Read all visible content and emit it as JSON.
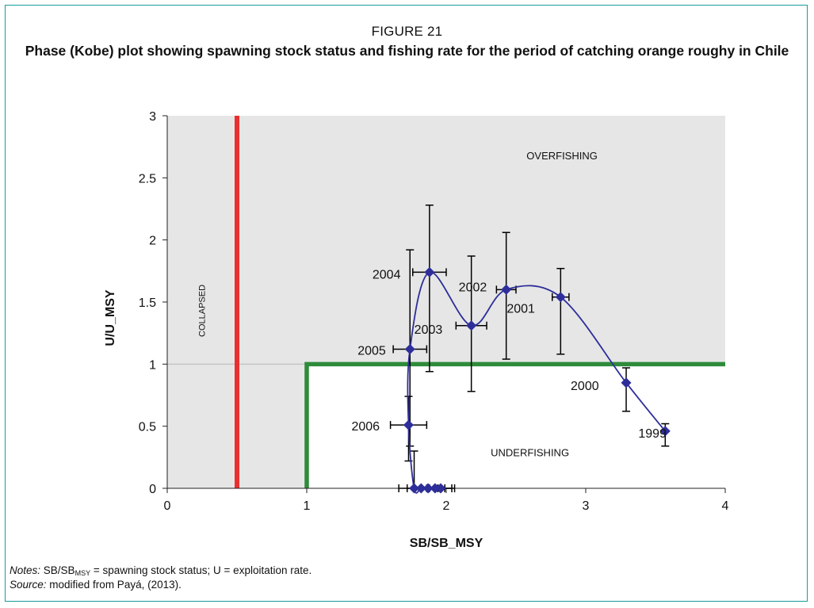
{
  "figure": {
    "label": "FIGURE 21",
    "title": "Phase (Kobe) plot showing spawning stock status and fishing rate for the period of catching orange roughy in Chile"
  },
  "notes": {
    "notes_label": "Notes:",
    "notes_sb": "SB/SB",
    "notes_sub": "MSY",
    "notes_rest": " = spawning stock status; U = exploitation rate.",
    "source_label": "Source:",
    "source_text": " modified from Payá, (2013)."
  },
  "colors": {
    "plot_background": "#e6e6e6",
    "collapse_line": "#e83030",
    "target_line": "#2e8b3a",
    "series_line": "#2e2e9a",
    "marker": "#2e2e9a",
    "error_bar": "#000000",
    "frame_border": "#1a9a9a"
  },
  "chart_data": {
    "type": "scatter",
    "title": "",
    "xlabel": "SB/SB_MSY",
    "ylabel": "U/U_MSY",
    "xlim": [
      0,
      4
    ],
    "ylim": [
      0,
      3
    ],
    "xticks": [
      "0",
      "1",
      "2",
      "3",
      "4"
    ],
    "yticks": [
      "0",
      "0.5",
      "1",
      "1.5",
      "2",
      "2.5",
      "3"
    ],
    "grid": false,
    "region_labels": {
      "overfishing": "OVERFISHING",
      "underfishing": "UNDERFISHING",
      "collapsed": "COLLAPSED"
    },
    "reference_lines": {
      "collapse_x": 0.5,
      "target": {
        "x": 1,
        "y": 1
      },
      "background_y": 1
    },
    "points": [
      {
        "label": "1999",
        "x": 3.57,
        "y": 0.46,
        "x_lo": 3.57,
        "x_hi": 3.57,
        "y_lo": 0.34,
        "y_hi": 0.52
      },
      {
        "label": "2000",
        "x": 3.29,
        "y": 0.85,
        "x_lo": 3.29,
        "x_hi": 3.29,
        "y_lo": 0.62,
        "y_hi": 0.97
      },
      {
        "label": "2001",
        "x": 2.82,
        "y": 1.54,
        "x_lo": 2.76,
        "x_hi": 2.88,
        "y_lo": 1.08,
        "y_hi": 1.77
      },
      {
        "label": "2002",
        "x": 2.43,
        "y": 1.6,
        "x_lo": 2.36,
        "x_hi": 2.5,
        "y_lo": 1.04,
        "y_hi": 2.06
      },
      {
        "label": "2003",
        "x": 2.18,
        "y": 1.31,
        "x_lo": 2.07,
        "x_hi": 2.29,
        "y_lo": 0.78,
        "y_hi": 1.87
      },
      {
        "label": "2004",
        "x": 1.88,
        "y": 1.74,
        "x_lo": 1.76,
        "x_hi": 2.0,
        "y_lo": 0.94,
        "y_hi": 2.28
      },
      {
        "label": "2005",
        "x": 1.74,
        "y": 1.12,
        "x_lo": 1.62,
        "x_hi": 1.86,
        "y_lo": 0.34,
        "y_hi": 1.92
      },
      {
        "label": "2006",
        "x": 1.73,
        "y": 0.51,
        "x_lo": 1.6,
        "x_hi": 1.86,
        "y_lo": 0.22,
        "y_hi": 0.74
      },
      {
        "label": "",
        "x": 1.77,
        "y": 0.0,
        "x_lo": 1.66,
        "x_hi": 1.88,
        "y_lo": 0.0,
        "y_hi": 0.3
      },
      {
        "label": "",
        "x": 1.82,
        "y": 0.0,
        "x_lo": 1.72,
        "x_hi": 1.94,
        "y_lo": 0.0,
        "y_hi": 0.0
      },
      {
        "label": "",
        "x": 1.87,
        "y": 0.0,
        "x_lo": 1.77,
        "x_hi": 1.99,
        "y_lo": 0.0,
        "y_hi": 0.0
      },
      {
        "label": "",
        "x": 1.92,
        "y": 0.0,
        "x_lo": 1.82,
        "x_hi": 2.04,
        "y_lo": 0.0,
        "y_hi": 0.0
      },
      {
        "label": "",
        "x": 1.96,
        "y": 0.0,
        "x_lo": 1.86,
        "x_hi": 2.06,
        "y_lo": 0.0,
        "y_hi": 0.0
      }
    ]
  }
}
